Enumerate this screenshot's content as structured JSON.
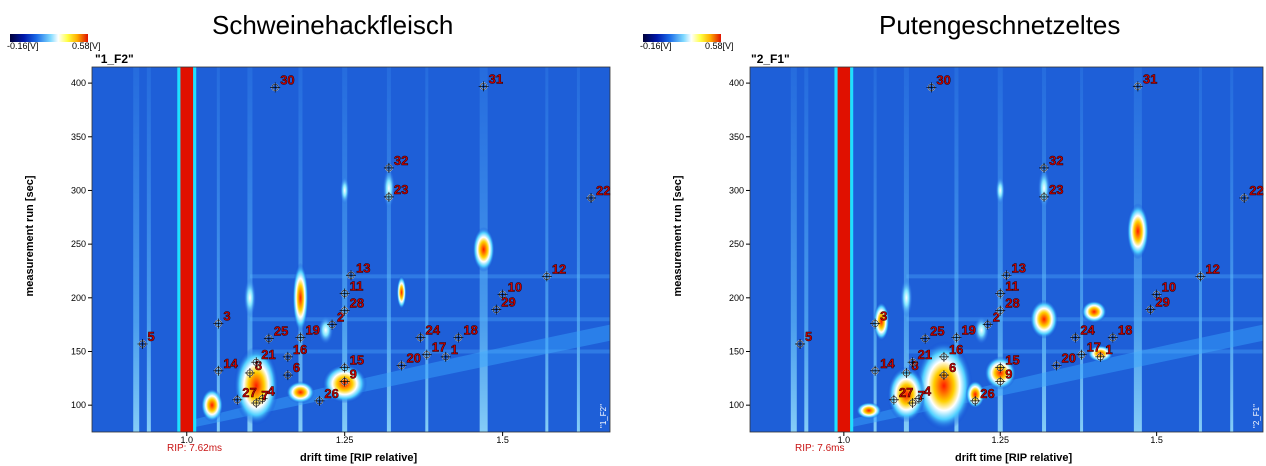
{
  "colorbar": {
    "min_label": "-0.16[V]",
    "max_label": "0.58[V]"
  },
  "panels": [
    {
      "title": "Schweinehackfleisch",
      "sample_id": "\"1_F2\"",
      "rip_label": "RIP: 7.62ms",
      "corner_label": "1_F2"
    },
    {
      "title": "Putengeschnetzeltes",
      "sample_id": "\"2_F1\"",
      "rip_label": "RIP: 7.6ms",
      "corner_label": "2_F1"
    }
  ],
  "chart_data": [
    {
      "type": "heatmap",
      "title": "Schweinehackfleisch",
      "xlabel": "drift time [RIP relative]",
      "ylabel": "measurement run [sec]",
      "xlim": [
        0.85,
        1.67
      ],
      "ylim": [
        75,
        415
      ],
      "xticks": [
        "1.0",
        "1.25",
        "1.5"
      ],
      "yticks": [
        "100",
        "150",
        "200",
        "250",
        "300",
        "350",
        "400"
      ],
      "markers": [
        {
          "label": "1",
          "x": 1.41,
          "y": 145
        },
        {
          "label": "2",
          "x": 1.23,
          "y": 175
        },
        {
          "label": "3",
          "x": 1.05,
          "y": 176
        },
        {
          "label": "4",
          "x": 1.12,
          "y": 106
        },
        {
          "label": "5",
          "x": 0.93,
          "y": 157
        },
        {
          "label": "6",
          "x": 1.16,
          "y": 128
        },
        {
          "label": "7",
          "x": 1.11,
          "y": 102
        },
        {
          "label": "8",
          "x": 1.1,
          "y": 130
        },
        {
          "label": "9",
          "x": 1.25,
          "y": 122
        },
        {
          "label": "10",
          "x": 1.5,
          "y": 203
        },
        {
          "label": "11",
          "x": 1.25,
          "y": 204
        },
        {
          "label": "12",
          "x": 1.57,
          "y": 220
        },
        {
          "label": "13",
          "x": 1.26,
          "y": 221
        },
        {
          "label": "14",
          "x": 1.05,
          "y": 132
        },
        {
          "label": "15",
          "x": 1.25,
          "y": 135
        },
        {
          "label": "16",
          "x": 1.16,
          "y": 145
        },
        {
          "label": "17",
          "x": 1.38,
          "y": 147
        },
        {
          "label": "18",
          "x": 1.43,
          "y": 163
        },
        {
          "label": "19",
          "x": 1.18,
          "y": 163
        },
        {
          "label": "20",
          "x": 1.34,
          "y": 137
        },
        {
          "label": "21",
          "x": 1.11,
          "y": 140
        },
        {
          "label": "22",
          "x": 1.64,
          "y": 293
        },
        {
          "label": "23",
          "x": 1.32,
          "y": 294
        },
        {
          "label": "24",
          "x": 1.37,
          "y": 163
        },
        {
          "label": "25",
          "x": 1.13,
          "y": 162
        },
        {
          "label": "26",
          "x": 1.21,
          "y": 104
        },
        {
          "label": "27",
          "x": 1.08,
          "y": 105
        },
        {
          "label": "28",
          "x": 1.25,
          "y": 188
        },
        {
          "label": "29",
          "x": 1.49,
          "y": 189
        },
        {
          "label": "30",
          "x": 1.14,
          "y": 396
        },
        {
          "label": "31",
          "x": 1.47,
          "y": 397
        },
        {
          "label": "32",
          "x": 1.32,
          "y": 321
        }
      ]
    },
    {
      "type": "heatmap",
      "title": "Putengeschnetzeltes",
      "xlabel": "drift time [RIP relative]",
      "ylabel": "measurement run [sec]",
      "xlim": [
        0.85,
        1.67
      ],
      "ylim": [
        75,
        415
      ],
      "xticks": [
        "1.0",
        "1.25",
        "1.5"
      ],
      "yticks": [
        "100",
        "150",
        "200",
        "250",
        "300",
        "350",
        "400"
      ],
      "markers": [
        {
          "label": "1",
          "x": 1.41,
          "y": 145
        },
        {
          "label": "2",
          "x": 1.23,
          "y": 175
        },
        {
          "label": "3",
          "x": 1.05,
          "y": 176
        },
        {
          "label": "4",
          "x": 1.12,
          "y": 106
        },
        {
          "label": "5",
          "x": 0.93,
          "y": 157
        },
        {
          "label": "6",
          "x": 1.16,
          "y": 128
        },
        {
          "label": "7",
          "x": 1.11,
          "y": 102
        },
        {
          "label": "8",
          "x": 1.1,
          "y": 130
        },
        {
          "label": "9",
          "x": 1.25,
          "y": 122
        },
        {
          "label": "10",
          "x": 1.5,
          "y": 203
        },
        {
          "label": "11",
          "x": 1.25,
          "y": 204
        },
        {
          "label": "12",
          "x": 1.57,
          "y": 220
        },
        {
          "label": "13",
          "x": 1.26,
          "y": 221
        },
        {
          "label": "14",
          "x": 1.05,
          "y": 132
        },
        {
          "label": "15",
          "x": 1.25,
          "y": 135
        },
        {
          "label": "16",
          "x": 1.16,
          "y": 145
        },
        {
          "label": "17",
          "x": 1.38,
          "y": 147
        },
        {
          "label": "18",
          "x": 1.43,
          "y": 163
        },
        {
          "label": "19",
          "x": 1.18,
          "y": 163
        },
        {
          "label": "20",
          "x": 1.34,
          "y": 137
        },
        {
          "label": "21",
          "x": 1.11,
          "y": 140
        },
        {
          "label": "22",
          "x": 1.64,
          "y": 293
        },
        {
          "label": "23",
          "x": 1.32,
          "y": 294
        },
        {
          "label": "24",
          "x": 1.37,
          "y": 163
        },
        {
          "label": "25",
          "x": 1.13,
          "y": 162
        },
        {
          "label": "26",
          "x": 1.21,
          "y": 104
        },
        {
          "label": "27",
          "x": 1.08,
          "y": 105
        },
        {
          "label": "28",
          "x": 1.25,
          "y": 188
        },
        {
          "label": "29",
          "x": 1.49,
          "y": 189
        },
        {
          "label": "30",
          "x": 1.14,
          "y": 396
        },
        {
          "label": "31",
          "x": 1.47,
          "y": 397
        },
        {
          "label": "32",
          "x": 1.32,
          "y": 321
        }
      ]
    }
  ]
}
